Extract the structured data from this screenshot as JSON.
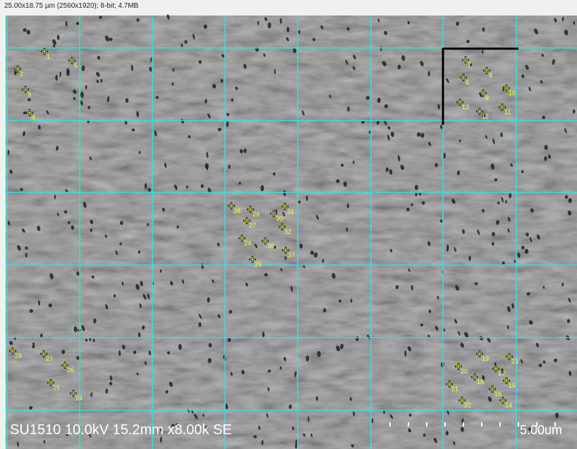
{
  "header": {
    "info": "25.00x18.75 µm (2560x1920); 8-bit; 4.7MB"
  },
  "image": {
    "footer": "SU1510 10.0kV 15.2mm x8.00k SE",
    "scale_label": "5.00um"
  },
  "markers": [
    {
      "label": "1"
    },
    {
      "label": "5"
    },
    {
      "label": "2"
    },
    {
      "label": "3"
    },
    {
      "label": "4"
    },
    {
      "label": "7"
    },
    {
      "label": "8"
    },
    {
      "label": "6"
    },
    {
      "label": "9"
    },
    {
      "label": "10"
    },
    {
      "label": "13"
    },
    {
      "label": "12"
    },
    {
      "label": "11"
    },
    {
      "label": "28"
    },
    {
      "label": "29"
    },
    {
      "label": "31"
    },
    {
      "label": "27"
    },
    {
      "label": "30"
    },
    {
      "label": "32"
    },
    {
      "label": "24"
    },
    {
      "label": "36"
    },
    {
      "label": "37"
    },
    {
      "label": "26"
    },
    {
      "label": "28"
    },
    {
      "label": "27"
    },
    {
      "label": "26"
    },
    {
      "label": "25"
    },
    {
      "label": "24"
    },
    {
      "label": "23"
    },
    {
      "label": "19"
    },
    {
      "label": "20"
    },
    {
      "label": "17"
    },
    {
      "label": "18"
    },
    {
      "label": "15"
    },
    {
      "label": "16"
    },
    {
      "label": "21"
    },
    {
      "label": "22"
    },
    {
      "label": "14"
    }
  ]
}
